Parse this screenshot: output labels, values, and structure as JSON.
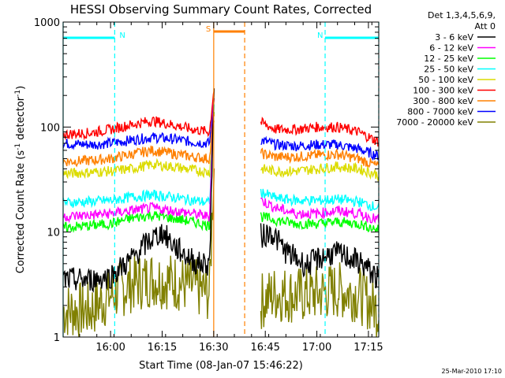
{
  "chart_data": {
    "type": "line",
    "title": "HESSI Observing Summary Count Rates, Corrected",
    "xlabel": "Start Time (08-Jan-07 15:46:22)",
    "ylabel_main": "Corrected Count Rate (s",
    "ylabel_sup1": "-1",
    "ylabel_mid": " detector",
    "ylabel_sup2": "-1",
    "ylabel_end": ")",
    "y_scale": "log",
    "ylim": [
      1,
      1000
    ],
    "xlim_minutes": [
      15.77,
      17.3
    ],
    "x_ticks": [
      {
        "label": "16:00",
        "value": 16.0
      },
      {
        "label": "16:15",
        "value": 16.25
      },
      {
        "label": "16:30",
        "value": 16.5
      },
      {
        "label": "16:45",
        "value": 16.75
      },
      {
        "label": "17:00",
        "value": 17.0
      },
      {
        "label": "17:15",
        "value": 17.25
      }
    ],
    "y_ticks": [
      {
        "label": "1",
        "value": 1
      },
      {
        "label": "10",
        "value": 10
      },
      {
        "label": "100",
        "value": 100
      },
      {
        "label": "1000",
        "value": 1000
      }
    ],
    "legend_title_1": "Det 1,3,4,5,6,9,",
    "legend_title_2": "Att 0",
    "legend_placement": "top-right outside",
    "series": [
      {
        "name": "3 - 6 keV",
        "color": "#000000",
        "x": [
          15.77,
          15.9,
          16.0,
          16.1,
          16.18,
          16.25,
          16.32,
          16.42,
          16.48,
          16.5,
          16.73,
          16.78,
          16.85,
          16.95,
          17.0,
          17.08,
          17.15,
          17.22,
          17.3
        ],
        "y": [
          3.5,
          3.5,
          3.8,
          5.5,
          8,
          10,
          7,
          5,
          5,
          200,
          9,
          10,
          6.5,
          4.8,
          5.5,
          6.3,
          5.8,
          5,
          3.5
        ]
      },
      {
        "name": "6 - 12 keV",
        "color": "#ff00ff",
        "x": [
          15.77,
          15.9,
          16.0,
          16.1,
          16.2,
          16.3,
          16.4,
          16.48,
          16.5,
          16.73,
          16.8,
          16.9,
          17.0,
          17.1,
          17.2,
          17.3
        ],
        "y": [
          14,
          14.5,
          15,
          16,
          17,
          16,
          15,
          14,
          200,
          20,
          17,
          15,
          15,
          16,
          15,
          13
        ]
      },
      {
        "name": "12 - 25 keV",
        "color": "#00ff00",
        "x": [
          15.77,
          15.9,
          16.0,
          16.1,
          16.2,
          16.3,
          16.4,
          16.48,
          16.5,
          16.73,
          16.8,
          16.9,
          17.0,
          17.1,
          17.2,
          17.3
        ],
        "y": [
          11,
          11.5,
          12,
          13.5,
          14.5,
          13.5,
          12.5,
          11.5,
          150,
          14,
          13,
          12,
          12,
          12.5,
          12,
          10.5
        ]
      },
      {
        "name": "25 - 50 keV",
        "color": "#00ffff",
        "x": [
          15.77,
          15.9,
          16.0,
          16.1,
          16.2,
          16.3,
          16.4,
          16.48,
          16.5,
          16.73,
          16.8,
          16.9,
          17.0,
          17.1,
          17.2,
          17.3
        ],
        "y": [
          19,
          19.5,
          20,
          21.5,
          22.5,
          21.5,
          20,
          19,
          150,
          24,
          21,
          20,
          20,
          20.5,
          19.5,
          17
        ]
      },
      {
        "name": "50 - 100 keV",
        "color": "#dcdc00",
        "x": [
          15.77,
          15.9,
          16.0,
          16.1,
          16.2,
          16.3,
          16.4,
          16.48,
          16.5,
          16.73,
          16.8,
          16.9,
          17.0,
          17.1,
          17.2,
          17.3
        ],
        "y": [
          36,
          37,
          38,
          40,
          44,
          42,
          39,
          37,
          120,
          40,
          38,
          38,
          40,
          42,
          40,
          35
        ]
      },
      {
        "name": "100 - 300 keV",
        "color": "#ff0000",
        "x": [
          15.77,
          15.9,
          16.0,
          16.1,
          16.2,
          16.3,
          16.4,
          16.48,
          16.5,
          16.73,
          16.8,
          16.9,
          17.0,
          17.1,
          17.2,
          17.3
        ],
        "y": [
          85,
          88,
          95,
          105,
          115,
          105,
          95,
          90,
          230,
          110,
          95,
          95,
          100,
          100,
          90,
          72
        ]
      },
      {
        "name": "300 - 800 keV",
        "color": "#ff8000",
        "x": [
          15.77,
          15.9,
          16.0,
          16.1,
          16.2,
          16.3,
          16.4,
          16.48,
          16.5,
          16.73,
          16.8,
          16.9,
          17.0,
          17.1,
          17.2,
          17.3
        ],
        "y": [
          47,
          48,
          50,
          55,
          60,
          56,
          52,
          50,
          140,
          56,
          52,
          52,
          54,
          55,
          50,
          42
        ]
      },
      {
        "name": "800 - 7000 keV",
        "color": "#0000ff",
        "x": [
          15.77,
          15.9,
          16.0,
          16.1,
          16.2,
          16.3,
          16.4,
          16.48,
          16.5,
          16.73,
          16.8,
          16.9,
          17.0,
          17.1,
          17.2,
          17.3
        ],
        "y": [
          70,
          68,
          70,
          75,
          80,
          77,
          72,
          70,
          190,
          75,
          68,
          66,
          68,
          68,
          62,
          53
        ]
      },
      {
        "name": "7000 - 20000 keV",
        "color": "#808000",
        "x": [
          15.77,
          15.9,
          16.0,
          16.1,
          16.2,
          16.3,
          16.4,
          16.48,
          16.5,
          16.73,
          16.8,
          16.9,
          17.0,
          17.1,
          17.2,
          17.3
        ],
        "y": [
          1.8,
          1.8,
          2.5,
          3.2,
          3.6,
          3.4,
          3.0,
          2.6,
          40,
          2.2,
          2.6,
          2.5,
          2.6,
          2.8,
          2.6,
          1.8
        ]
      }
    ],
    "annotations": [
      {
        "label": "N",
        "color": "#00ffff",
        "start": 15.77,
        "end": 16.02
      },
      {
        "label": "N",
        "color": "#00ffff",
        "start": 17.04,
        "end": 17.3
      },
      {
        "label": "S",
        "color": "#ff8000",
        "start": 16.5,
        "end": 16.65
      }
    ],
    "footer_date": "25-Mar-2010 17:10"
  }
}
